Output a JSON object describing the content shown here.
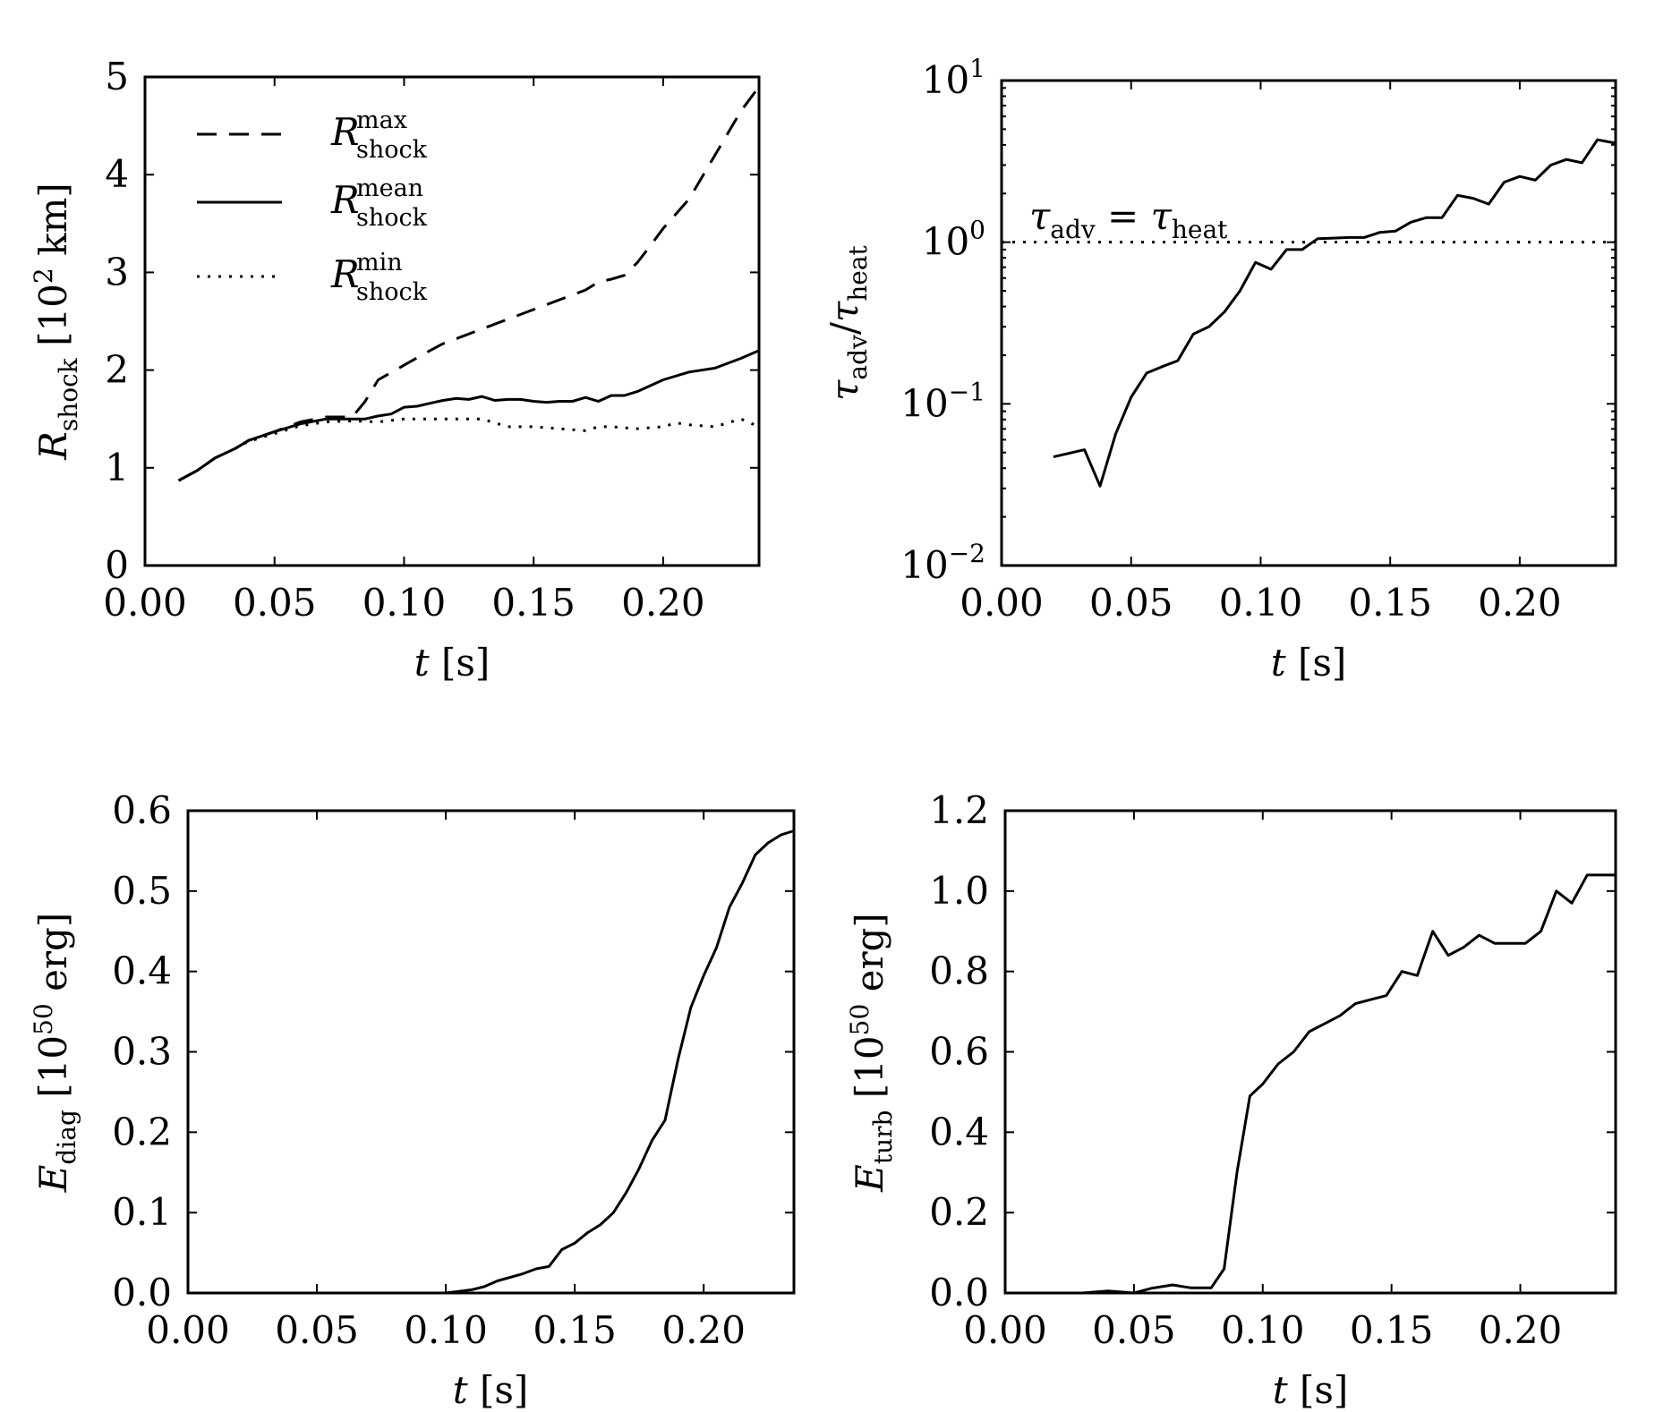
{
  "chart_data": [
    {
      "type": "line",
      "id": "p1",
      "xlabel": "t [s]",
      "ylabel": "R_shock [10^2 km]",
      "xlim": [
        0.0,
        0.237
      ],
      "ylim": [
        0,
        5
      ],
      "xticks": [
        "0.00",
        "0.05",
        "0.10",
        "0.15",
        "0.20"
      ],
      "yticks": [
        "0",
        "1",
        "2",
        "3",
        "4",
        "5"
      ],
      "legend_position": "top-left",
      "series": [
        {
          "name": "R_shock^max",
          "style": "dashed",
          "x": [
            0.013,
            0.02,
            0.027,
            0.035,
            0.04,
            0.05,
            0.06,
            0.07,
            0.08,
            0.085,
            0.09,
            0.1,
            0.11,
            0.115,
            0.12,
            0.13,
            0.14,
            0.15,
            0.16,
            0.17,
            0.175,
            0.18,
            0.185,
            0.19,
            0.195,
            0.2,
            0.21,
            0.22,
            0.23,
            0.237
          ],
          "y": [
            0.87,
            0.97,
            1.1,
            1.2,
            1.28,
            1.37,
            1.47,
            1.52,
            1.52,
            1.68,
            1.9,
            2.05,
            2.2,
            2.27,
            2.32,
            2.42,
            2.52,
            2.62,
            2.72,
            2.82,
            2.9,
            2.93,
            2.97,
            3.1,
            3.27,
            3.45,
            3.75,
            4.2,
            4.65,
            4.9
          ]
        },
        {
          "name": "R_shock^mean",
          "style": "solid",
          "x": [
            0.013,
            0.02,
            0.027,
            0.035,
            0.04,
            0.05,
            0.06,
            0.07,
            0.08,
            0.085,
            0.09,
            0.095,
            0.1,
            0.105,
            0.11,
            0.115,
            0.12,
            0.125,
            0.13,
            0.135,
            0.14,
            0.145,
            0.15,
            0.155,
            0.16,
            0.165,
            0.17,
            0.175,
            0.18,
            0.185,
            0.19,
            0.2,
            0.21,
            0.22,
            0.23,
            0.237
          ],
          "y": [
            0.87,
            0.97,
            1.1,
            1.2,
            1.28,
            1.37,
            1.45,
            1.5,
            1.5,
            1.5,
            1.53,
            1.55,
            1.62,
            1.63,
            1.66,
            1.69,
            1.71,
            1.7,
            1.73,
            1.69,
            1.7,
            1.7,
            1.68,
            1.67,
            1.68,
            1.68,
            1.72,
            1.68,
            1.74,
            1.74,
            1.78,
            1.9,
            1.98,
            2.02,
            2.12,
            2.2
          ]
        },
        {
          "name": "R_shock^min",
          "style": "dotted",
          "x": [
            0.013,
            0.02,
            0.027,
            0.035,
            0.04,
            0.05,
            0.06,
            0.07,
            0.08,
            0.09,
            0.1,
            0.11,
            0.12,
            0.13,
            0.14,
            0.15,
            0.16,
            0.17,
            0.175,
            0.18,
            0.19,
            0.2,
            0.205,
            0.21,
            0.22,
            0.23,
            0.237
          ],
          "y": [
            0.87,
            0.97,
            1.1,
            1.2,
            1.27,
            1.35,
            1.43,
            1.47,
            1.48,
            1.47,
            1.5,
            1.5,
            1.5,
            1.5,
            1.42,
            1.42,
            1.4,
            1.38,
            1.42,
            1.42,
            1.4,
            1.42,
            1.46,
            1.44,
            1.42,
            1.5,
            1.42
          ]
        }
      ]
    },
    {
      "type": "line",
      "id": "p2",
      "xlabel": "t [s]",
      "ylabel": "τ_adv/τ_heat",
      "yscale": "log",
      "xlim": [
        0.0,
        0.237
      ],
      "ylim": [
        0.01,
        10
      ],
      "xticks": [
        "0.00",
        "0.05",
        "0.10",
        "0.15",
        "0.20"
      ],
      "yticks": [
        "10^-2",
        "10^-1",
        "10^0",
        "10^1"
      ],
      "annotation": "τ_adv = τ_heat",
      "hline": 1.0,
      "series": [
        {
          "name": "",
          "style": "solid",
          "x": [
            0.02,
            0.032,
            0.038,
            0.044,
            0.05,
            0.056,
            0.062,
            0.068,
            0.074,
            0.08,
            0.086,
            0.092,
            0.098,
            0.104,
            0.11,
            0.116,
            0.122,
            0.128,
            0.134,
            0.14,
            0.146,
            0.152,
            0.158,
            0.164,
            0.17,
            0.176,
            0.182,
            0.188,
            0.194,
            0.2,
            0.206,
            0.212,
            0.218,
            0.224,
            0.23,
            0.237
          ],
          "y": [
            0.047,
            0.052,
            0.031,
            0.065,
            0.11,
            0.155,
            0.17,
            0.185,
            0.27,
            0.3,
            0.37,
            0.5,
            0.75,
            0.68,
            0.9,
            0.9,
            1.05,
            1.06,
            1.07,
            1.07,
            1.15,
            1.17,
            1.33,
            1.42,
            1.42,
            1.95,
            1.87,
            1.72,
            2.35,
            2.55,
            2.42,
            3.0,
            3.25,
            3.1,
            4.3,
            4.1
          ]
        }
      ]
    },
    {
      "type": "line",
      "id": "p3",
      "xlabel": "t [s]",
      "ylabel": "E_diag [10^50 erg]",
      "xlim": [
        0.0,
        0.235
      ],
      "ylim": [
        0.0,
        0.6
      ],
      "xticks": [
        "0.00",
        "0.05",
        "0.10",
        "0.15",
        "0.20"
      ],
      "yticks": [
        "0.0",
        "0.1",
        "0.2",
        "0.3",
        "0.4",
        "0.5",
        "0.6"
      ],
      "series": [
        {
          "name": "",
          "style": "solid",
          "x": [
            0.0,
            0.1,
            0.105,
            0.11,
            0.115,
            0.12,
            0.13,
            0.135,
            0.14,
            0.145,
            0.15,
            0.155,
            0.16,
            0.165,
            0.17,
            0.175,
            0.18,
            0.185,
            0.19,
            0.195,
            0.2,
            0.205,
            0.21,
            0.215,
            0.22,
            0.225,
            0.23,
            0.235
          ],
          "y": [
            0.0,
            0.0,
            0.002,
            0.004,
            0.008,
            0.015,
            0.024,
            0.03,
            0.033,
            0.054,
            0.062,
            0.075,
            0.085,
            0.1,
            0.125,
            0.155,
            0.19,
            0.215,
            0.29,
            0.355,
            0.395,
            0.43,
            0.48,
            0.51,
            0.545,
            0.56,
            0.57,
            0.575
          ]
        }
      ]
    },
    {
      "type": "line",
      "id": "p4",
      "xlabel": "t [s]",
      "ylabel": "E_turb [10^50 erg]",
      "xlim": [
        0.0,
        0.237
      ],
      "ylim": [
        0.0,
        1.2
      ],
      "xticks": [
        "0.00",
        "0.05",
        "0.10",
        "0.15",
        "0.20"
      ],
      "yticks": [
        "0.0",
        "0.2",
        "0.4",
        "0.6",
        "0.8",
        "1.0",
        "1.2"
      ],
      "series": [
        {
          "name": "",
          "style": "solid",
          "x": [
            0.0,
            0.03,
            0.04,
            0.05,
            0.057,
            0.065,
            0.072,
            0.08,
            0.085,
            0.09,
            0.095,
            0.1,
            0.106,
            0.112,
            0.118,
            0.124,
            0.13,
            0.136,
            0.142,
            0.148,
            0.154,
            0.16,
            0.166,
            0.172,
            0.178,
            0.184,
            0.19,
            0.196,
            0.202,
            0.208,
            0.214,
            0.22,
            0.226,
            0.232,
            0.237
          ],
          "y": [
            0.0,
            0.0,
            0.005,
            0.0,
            0.012,
            0.02,
            0.013,
            0.013,
            0.06,
            0.3,
            0.49,
            0.52,
            0.57,
            0.6,
            0.65,
            0.67,
            0.69,
            0.72,
            0.73,
            0.74,
            0.8,
            0.79,
            0.9,
            0.84,
            0.86,
            0.89,
            0.87,
            0.87,
            0.87,
            0.9,
            1.0,
            0.97,
            1.04,
            1.04,
            1.04
          ]
        }
      ]
    }
  ]
}
